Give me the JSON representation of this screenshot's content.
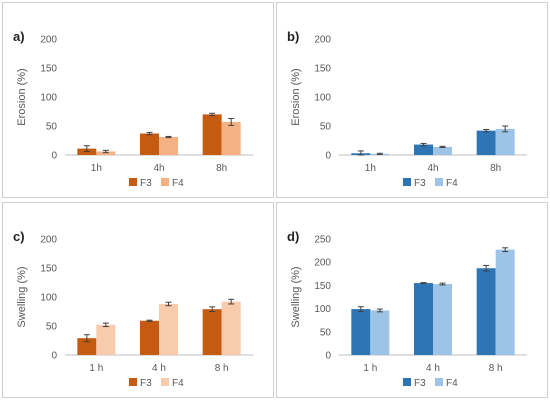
{
  "chart_data": [
    {
      "type": "bar",
      "panel_label": "a)",
      "categories": [
        "1h",
        "4h",
        "8h"
      ],
      "series": [
        {
          "name": "F3",
          "values": [
            11,
            37,
            70
          ],
          "errors": [
            5,
            2,
            2
          ],
          "color": "#c55a11"
        },
        {
          "name": "F4",
          "values": [
            6,
            31,
            57
          ],
          "errors": [
            2,
            1,
            6
          ],
          "color": "#f4b183"
        }
      ],
      "ylabel": "Erosion (%)",
      "xlabel": "",
      "ylim": [
        0,
        200
      ],
      "yticks": [
        0,
        50,
        100,
        150,
        200
      ],
      "legend": "bottom",
      "grid": false
    },
    {
      "type": "bar",
      "panel_label": "b)",
      "categories": [
        "1h",
        "4h",
        "8h"
      ],
      "series": [
        {
          "name": "F3",
          "values": [
            3,
            18,
            42
          ],
          "errors": [
            4,
            2,
            2
          ],
          "color": "#2e75b6"
        },
        {
          "name": "F4",
          "values": [
            2,
            14,
            45
          ],
          "errors": [
            1,
            1,
            5
          ],
          "color": "#9dc3e6"
        }
      ],
      "ylabel": "Erosion (%)",
      "xlabel": "",
      "ylim": [
        0,
        200
      ],
      "yticks": [
        0,
        50,
        100,
        150,
        200
      ],
      "legend": "bottom",
      "grid": false
    },
    {
      "type": "bar",
      "panel_label": "c)",
      "categories": [
        "1 h",
        "4 h",
        "8 h"
      ],
      "series": [
        {
          "name": "F3",
          "values": [
            29,
            59,
            79
          ],
          "errors": [
            6,
            1,
            4
          ],
          "color": "#c55a11"
        },
        {
          "name": "F4",
          "values": [
            52,
            88,
            92
          ],
          "errors": [
            3,
            3,
            4
          ],
          "color": "#f8cbad"
        }
      ],
      "ylabel": "Swelling (%)",
      "xlabel": "",
      "ylim": [
        0,
        200
      ],
      "yticks": [
        0,
        50,
        100,
        150,
        200
      ],
      "legend": "bottom",
      "grid": false
    },
    {
      "type": "bar",
      "panel_label": "d)",
      "categories": [
        "1 h",
        "4 h",
        "8 h"
      ],
      "series": [
        {
          "name": "F3",
          "values": [
            99,
            155,
            187
          ],
          "errors": [
            5,
            1,
            6
          ],
          "color": "#2e75b6"
        },
        {
          "name": "F4",
          "values": [
            96,
            153,
            227
          ],
          "errors": [
            3,
            2,
            4
          ],
          "color": "#9dc3e6"
        }
      ],
      "ylabel": "Swelling (%)",
      "xlabel": "",
      "ylim": [
        0,
        250
      ],
      "yticks": [
        0,
        50,
        100,
        150,
        200,
        250
      ],
      "legend": "bottom",
      "grid": false
    }
  ]
}
